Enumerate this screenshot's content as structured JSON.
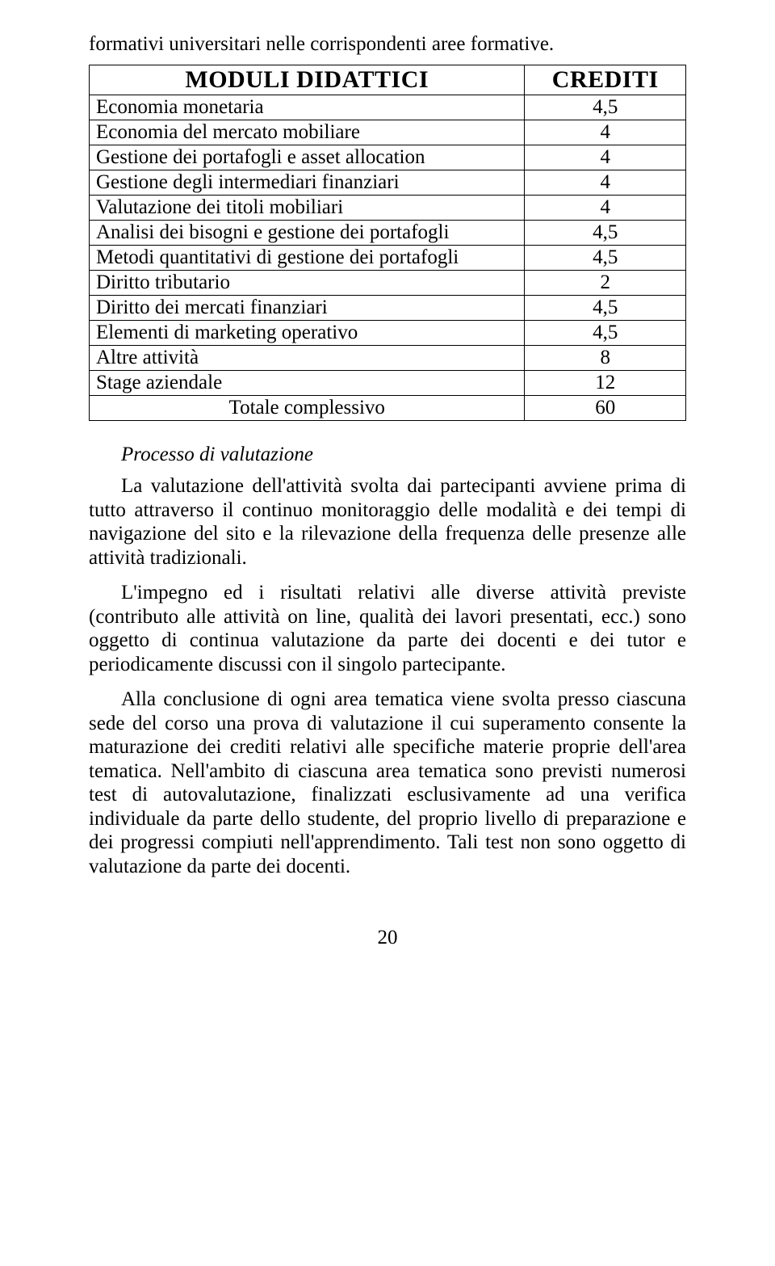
{
  "intro": "formativi universitari nelle corrispondenti aree formative.",
  "table": {
    "header_module": "MODULI DIDATTICI",
    "header_credits": "CREDITI",
    "rows": [
      {
        "label": "Economia monetaria",
        "value": "4,5"
      },
      {
        "label": "Economia del mercato mobiliare",
        "value": "4"
      },
      {
        "label": "Gestione dei portafogli e asset allocation",
        "value": "4"
      },
      {
        "label": "Gestione degli intermediari finanziari",
        "value": "4"
      },
      {
        "label": "Valutazione dei titoli mobiliari",
        "value": "4"
      },
      {
        "label": "Analisi dei bisogni e gestione dei portafogli",
        "value": "4,5"
      },
      {
        "label": "Metodi quantitativi di gestione dei portafogli",
        "value": "4,5"
      },
      {
        "label": "Diritto tributario",
        "value": "2"
      },
      {
        "label": "Diritto dei mercati finanziari",
        "value": "4,5"
      },
      {
        "label": "Elementi di marketing operativo",
        "value": "4,5"
      },
      {
        "label": "Altre attività",
        "value": "8"
      },
      {
        "label": "Stage aziendale",
        "value": "12"
      }
    ],
    "total_label": "Totale complessivo",
    "total_value": "60"
  },
  "section_title": "Processo di valutazione",
  "paragraphs": [
    "La valutazione dell'attività svolta dai partecipanti avviene prima di tutto attraverso il continuo monitoraggio delle modalità e dei tempi di navigazione del sito e la rilevazione della frequenza delle presenze alle attività tradizionali.",
    "L'impegno ed i risultati relativi alle diverse attività previste (contributo alle attività on line, qualità dei lavori presentati, ecc.) sono oggetto di continua valutazione da parte dei docenti e dei tutor e periodicamente discussi con il singolo partecipante.",
    "Alla conclusione di ogni area tematica viene svolta presso ciascuna sede del corso una prova di valutazione il cui superamento consente la maturazione dei crediti relativi alle specifiche materie proprie dell'area tematica. Nell'ambito di ciascuna area tematica sono previsti numerosi test di autovalutazione, finalizzati esclusivamente ad una verifica individuale da parte dello studente, del proprio livello di preparazione e dei progressi compiuti nell'apprendimento. Tali test non sono oggetto di valutazione da parte dei docenti."
  ],
  "page_number": "20"
}
